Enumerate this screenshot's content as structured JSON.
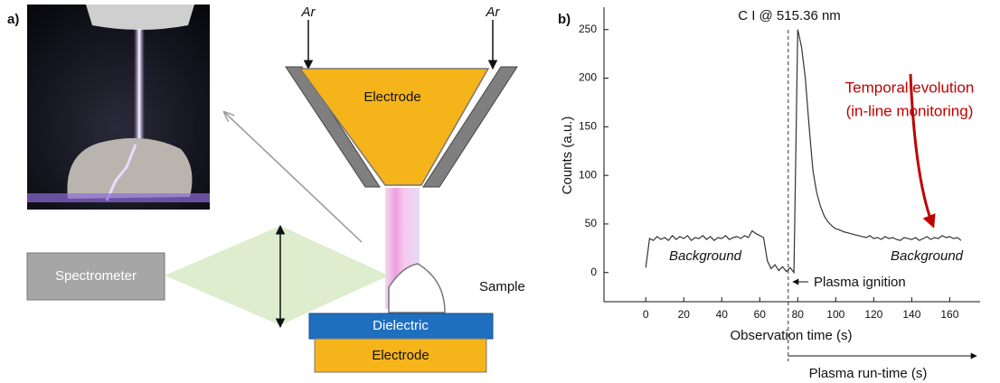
{
  "panel_a": {
    "label": "a)",
    "gas_left": "Ar",
    "gas_right": "Ar",
    "top_electrode": "Electrode",
    "spectrometer": "Spectrometer",
    "sample": "Sample",
    "dielectric": "Dielectric",
    "bottom_electrode": "Electrode"
  },
  "chart_data": {
    "type": "line",
    "panel_label": "b)",
    "title": "C I @ 515.36 nm",
    "x_label": "Observation time (s)",
    "y_label": "Counts (a.u.)",
    "color": "#333333",
    "x": [
      0,
      2,
      4,
      6,
      8,
      10,
      12,
      14,
      16,
      18,
      20,
      22,
      24,
      26,
      28,
      30,
      32,
      34,
      36,
      38,
      40,
      42,
      44,
      46,
      48,
      50,
      52,
      54,
      56,
      58,
      60,
      62,
      64,
      66,
      68,
      70,
      72,
      74,
      76,
      78,
      80,
      82,
      84,
      86,
      88,
      90,
      92,
      94,
      96,
      98,
      100,
      102,
      104,
      106,
      108,
      110,
      112,
      114,
      116,
      118,
      120,
      122,
      124,
      126,
      128,
      130,
      132,
      134,
      136,
      138,
      140,
      142,
      144,
      146,
      148,
      150,
      152,
      154,
      156,
      158,
      160,
      162,
      164,
      166
    ],
    "values": [
      5,
      35,
      33,
      37,
      34,
      36,
      33,
      38,
      34,
      37,
      35,
      38,
      33,
      36,
      35,
      38,
      34,
      37,
      33,
      36,
      35,
      38,
      34,
      36,
      37,
      35,
      38,
      36,
      43,
      40,
      38,
      36,
      12,
      4,
      8,
      2,
      6,
      1,
      5,
      0,
      250,
      232,
      200,
      150,
      105,
      82,
      68,
      58,
      52,
      48,
      45,
      44,
      42,
      41,
      40,
      39,
      38,
      37,
      36,
      38,
      35,
      36,
      34,
      37,
      35,
      36,
      34,
      33,
      36,
      35,
      34,
      36,
      33,
      35,
      37,
      34,
      36,
      35,
      38,
      36,
      37,
      35,
      36,
      33
    ],
    "xlim": [
      -22,
      176
    ],
    "ylim": [
      -30,
      273
    ],
    "xticks": [
      0,
      20,
      40,
      60,
      80,
      100,
      120,
      140,
      160
    ],
    "yticks": [
      0,
      50,
      100,
      150,
      200,
      250
    ],
    "ignition_time": 75,
    "annotations": {
      "temporal_evolution": [
        "Temporal evolution",
        "(in-line monitoring)"
      ],
      "background_left": "Background",
      "background_right": "Background",
      "plasma_ignition": "Plasma ignition",
      "run_time": "Plasma run-time (s)"
    }
  }
}
